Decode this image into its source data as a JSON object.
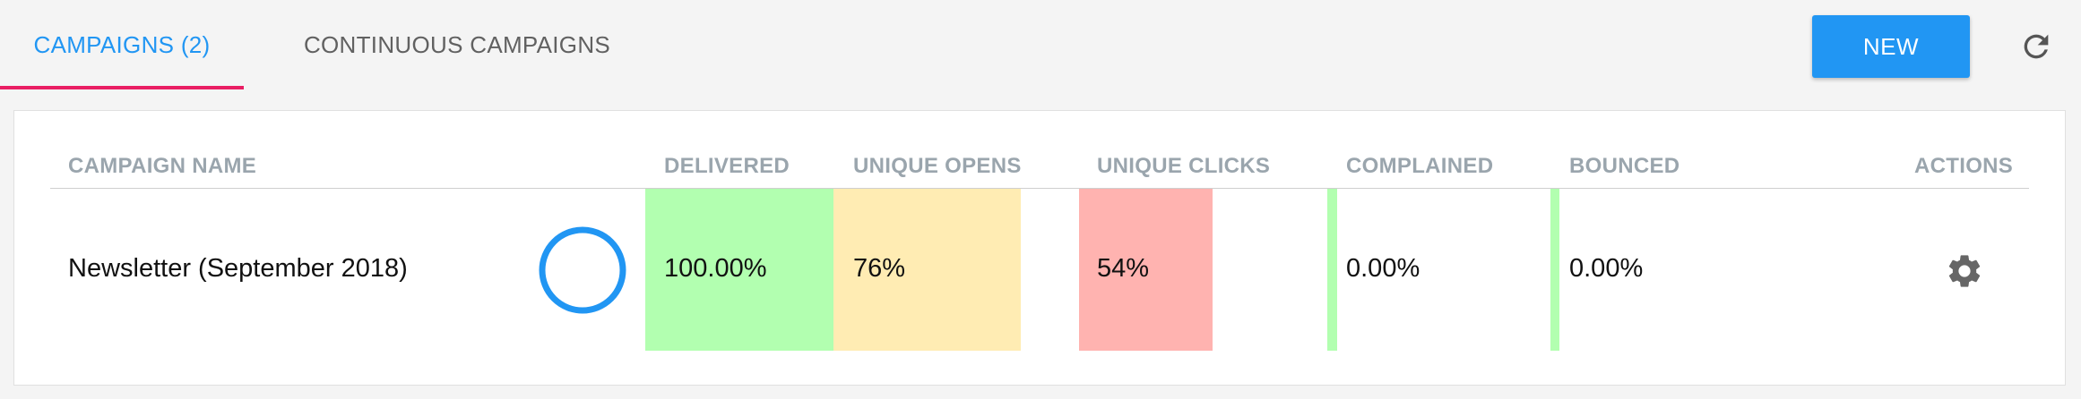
{
  "tabs": [
    {
      "label": "CAMPAIGNS (2)",
      "active": true
    },
    {
      "label": "CONTINUOUS CAMPAIGNS",
      "active": false
    }
  ],
  "toolbar": {
    "new_label": "NEW",
    "refresh_icon": "refresh-icon"
  },
  "table": {
    "columns": {
      "name": "CAMPAIGN NAME",
      "delivered": "DELIVERED",
      "unique_opens": "UNIQUE OPENS",
      "unique_clicks": "UNIQUE CLICKS",
      "complained": "COMPLAINED",
      "bounced": "BOUNCED",
      "actions": "ACTIONS"
    },
    "rows": [
      {
        "name": "Newsletter (September 2018)",
        "status_icon": "progress-ring-icon",
        "delivered": "100.00%",
        "unique_opens": "76%",
        "unique_clicks": "54%",
        "complained": "0.00%",
        "bounced": "0.00%",
        "actions_icon": "gear-icon"
      }
    ]
  },
  "colors": {
    "accent": "#2196f3",
    "tab_indicator": "#e91e63",
    "delivered_bg": "#b2ffb0",
    "opens_bg": "#ffecb3",
    "clicks_bg": "#ffb3b0",
    "complained_bar": "#b2ffb0",
    "bounced_bar": "#b2ffb0"
  }
}
